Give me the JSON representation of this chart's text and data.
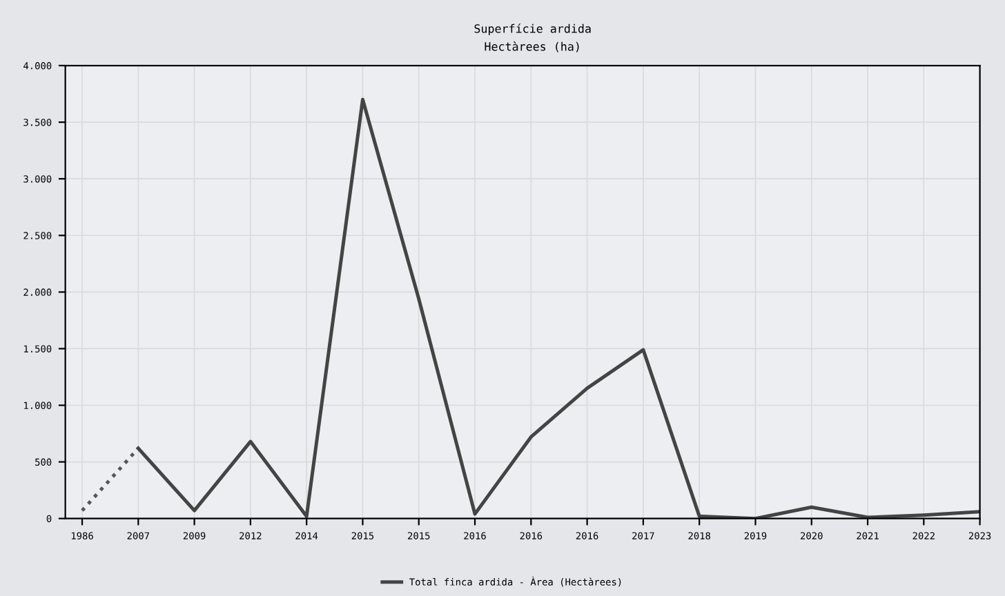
{
  "chart_data": {
    "type": "line",
    "title": "Superfície ardida",
    "subtitle": "Hectàrees (ha)",
    "categories": [
      "1986",
      "2007",
      "2009",
      "2012",
      "2014",
      "2015",
      "2015",
      "2016",
      "2016",
      "2016",
      "2017",
      "2018",
      "2019",
      "2020",
      "2021",
      "2022",
      "2023"
    ],
    "series": [
      {
        "color": "#555555",
        "line_style": "dotted",
        "values": [
          70,
          620,
          null,
          null,
          null,
          null,
          null,
          null,
          null,
          null,
          null,
          null,
          null,
          null,
          null,
          null,
          null
        ]
      },
      {
        "name": "Total finca ardida - Àrea (Hectàrees)",
        "color": "#444444",
        "line_style": "solid",
        "values": [
          null,
          620,
          70,
          680,
          20,
          3700,
          1940,
          40,
          720,
          1150,
          1490,
          20,
          0,
          100,
          10,
          30,
          60
        ]
      }
    ],
    "ylim": [
      0,
      4000
    ],
    "yticks": [
      0,
      500,
      {
        "value": 1000,
        "label": "1.000"
      },
      {
        "value": 1500,
        "label": "1.500"
      },
      {
        "value": 2000,
        "label": "2.000"
      },
      {
        "value": 2500,
        "label": "2.500"
      },
      {
        "value": 3000,
        "label": "3.000"
      },
      {
        "value": 3500,
        "label": "3.500"
      },
      {
        "value": 4000,
        "label": "4.000"
      }
    ],
    "grid": true,
    "legend": "bottom"
  }
}
